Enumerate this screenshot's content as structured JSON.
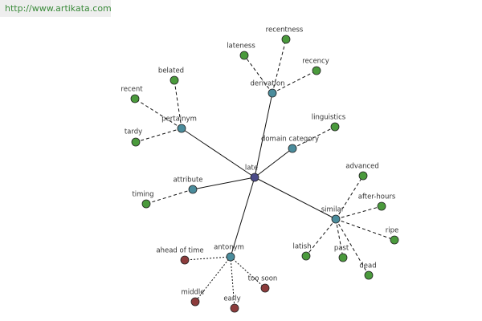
{
  "header": {
    "url": "http://www.artikata.com"
  },
  "nodes": [
    {
      "label": "late"
    },
    {
      "label": "derivation"
    },
    {
      "label": "pertainym"
    },
    {
      "label": "domain category"
    },
    {
      "label": "attribute"
    },
    {
      "label": "similar"
    },
    {
      "label": "antonym"
    },
    {
      "label": "recentness"
    },
    {
      "label": "lateness"
    },
    {
      "label": "recency"
    },
    {
      "label": "belated"
    },
    {
      "label": "recent"
    },
    {
      "label": "tardy"
    },
    {
      "label": "linguistics"
    },
    {
      "label": "timing"
    },
    {
      "label": "advanced"
    },
    {
      "label": "after-hours"
    },
    {
      "label": "ripe"
    },
    {
      "label": "latish"
    },
    {
      "label": "past"
    },
    {
      "label": "dead"
    },
    {
      "label": "ahead of time"
    },
    {
      "label": "too soon"
    },
    {
      "label": "middle"
    },
    {
      "label": "early"
    }
  ]
}
